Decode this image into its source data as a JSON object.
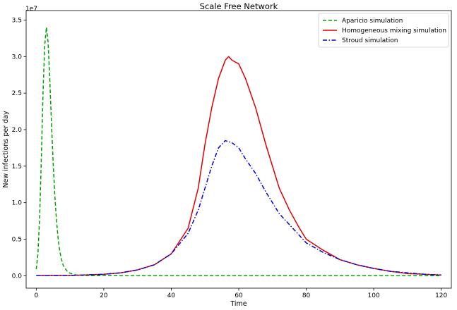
{
  "chart_data": {
    "type": "line",
    "title": "Scale Free Network",
    "xlabel": "Time",
    "ylabel": "New infections per day",
    "y_multiplier_label": "1e7",
    "xlim": [
      -3,
      123
    ],
    "ylim": [
      -0.17,
      3.63
    ],
    "x_ticks": [
      0,
      20,
      40,
      60,
      80,
      100,
      120
    ],
    "y_ticks": [
      0.0,
      0.5,
      1.0,
      1.5,
      2.0,
      2.5,
      3.0,
      3.5
    ],
    "x_tick_labels": [
      "0",
      "20",
      "40",
      "60",
      "80",
      "100",
      "120"
    ],
    "y_tick_labels": [
      "0.0",
      "0.5",
      "1.0",
      "1.5",
      "2.0",
      "2.5",
      "3.0",
      "3.5"
    ],
    "grid": false,
    "legend_position": "top-right",
    "series": [
      {
        "name": "Aparicio simulation",
        "color": "#00a000",
        "style": "dashed",
        "points": [
          [
            0,
            0.09
          ],
          [
            0.5,
            0.3
          ],
          [
            1,
            0.8
          ],
          [
            1.5,
            1.6
          ],
          [
            2,
            2.5
          ],
          [
            2.5,
            3.15
          ],
          [
            3,
            3.4
          ],
          [
            3.5,
            3.2
          ],
          [
            4,
            2.7
          ],
          [
            4.5,
            2.1
          ],
          [
            5,
            1.55
          ],
          [
            5.5,
            1.1
          ],
          [
            6,
            0.75
          ],
          [
            6.5,
            0.5
          ],
          [
            7,
            0.33
          ],
          [
            7.5,
            0.22
          ],
          [
            8,
            0.14
          ],
          [
            9,
            0.07
          ],
          [
            10,
            0.035
          ],
          [
            11,
            0.018
          ],
          [
            12,
            0.01
          ],
          [
            14,
            0.004
          ],
          [
            16,
            0.002
          ],
          [
            20,
            0.001
          ],
          [
            30,
            0
          ],
          [
            60,
            0
          ],
          [
            90,
            0
          ],
          [
            120,
            0
          ]
        ]
      },
      {
        "name": "Homogeneous mixing simulation",
        "color": "#e00000",
        "style": "solid",
        "points": [
          [
            0,
            0.001
          ],
          [
            10,
            0.003
          ],
          [
            20,
            0.02
          ],
          [
            25,
            0.04
          ],
          [
            30,
            0.08
          ],
          [
            35,
            0.15
          ],
          [
            40,
            0.3
          ],
          [
            45,
            0.65
          ],
          [
            48,
            1.2
          ],
          [
            50,
            1.8
          ],
          [
            52,
            2.3
          ],
          [
            54,
            2.7
          ],
          [
            56,
            2.95
          ],
          [
            57,
            3.0
          ],
          [
            58,
            2.95
          ],
          [
            60,
            2.9
          ],
          [
            62,
            2.7
          ],
          [
            65,
            2.3
          ],
          [
            68,
            1.8
          ],
          [
            70,
            1.5
          ],
          [
            72,
            1.2
          ],
          [
            75,
            0.9
          ],
          [
            78,
            0.65
          ],
          [
            80,
            0.5
          ],
          [
            85,
            0.35
          ],
          [
            90,
            0.22
          ],
          [
            95,
            0.15
          ],
          [
            100,
            0.1
          ],
          [
            105,
            0.06
          ],
          [
            110,
            0.03
          ],
          [
            115,
            0.02
          ],
          [
            120,
            0.01
          ]
        ]
      },
      {
        "name": "Stroud simulation",
        "color": "#0000e0",
        "style": "dashdot",
        "points": [
          [
            0,
            0.001
          ],
          [
            10,
            0.003
          ],
          [
            20,
            0.02
          ],
          [
            25,
            0.04
          ],
          [
            30,
            0.08
          ],
          [
            35,
            0.15
          ],
          [
            40,
            0.3
          ],
          [
            45,
            0.58
          ],
          [
            48,
            0.9
          ],
          [
            50,
            1.2
          ],
          [
            52,
            1.5
          ],
          [
            54,
            1.75
          ],
          [
            56,
            1.85
          ],
          [
            58,
            1.82
          ],
          [
            60,
            1.75
          ],
          [
            62,
            1.6
          ],
          [
            65,
            1.4
          ],
          [
            68,
            1.15
          ],
          [
            70,
            1.0
          ],
          [
            72,
            0.85
          ],
          [
            75,
            0.7
          ],
          [
            78,
            0.55
          ],
          [
            80,
            0.45
          ],
          [
            85,
            0.32
          ],
          [
            90,
            0.22
          ],
          [
            95,
            0.15
          ],
          [
            100,
            0.1
          ],
          [
            105,
            0.06
          ],
          [
            110,
            0.04
          ],
          [
            115,
            0.02
          ],
          [
            120,
            0.01
          ]
        ]
      }
    ]
  }
}
